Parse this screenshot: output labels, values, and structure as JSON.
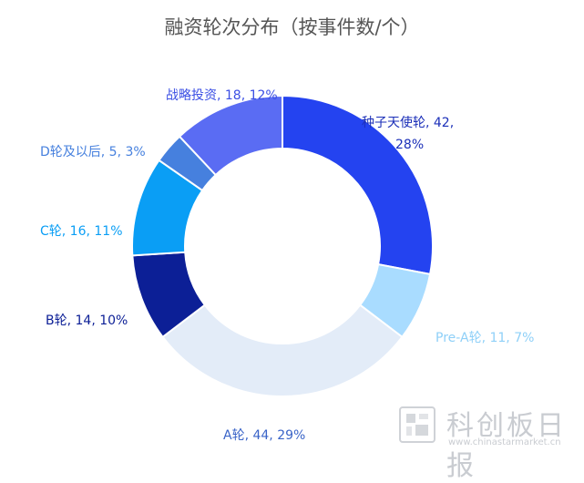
{
  "chart_data": {
    "type": "pie",
    "title": "融资轮次分布（按事件数/个）",
    "categories": [
      "种子天使轮",
      "Pre-A轮",
      "A轮",
      "B轮",
      "C轮",
      "D轮及以后",
      "战略投资"
    ],
    "values": [
      42,
      11,
      44,
      14,
      16,
      5,
      18
    ],
    "percent_labels": [
      "28%",
      "7%",
      "29%",
      "10%",
      "11%",
      "3%",
      "12%"
    ],
    "colors": [
      "#2443f0",
      "#a9dcff",
      "#e3ecf8",
      "#0c1f96",
      "#0a9ef5",
      "#4680de",
      "#5a6cf3"
    ],
    "label_colors": [
      "#1b2fb8",
      "#8fd0f8",
      "#3a64c8",
      "#0c1f96",
      "#0a9ef5",
      "#4680de",
      "#3b4fe4"
    ],
    "labels": [
      {
        "lines": [
          "种子天使轮, 42,",
          "28%"
        ]
      },
      {
        "lines": [
          "Pre-A轮, 11, 7%"
        ]
      },
      {
        "lines": [
          "A轮, 44, 29%"
        ]
      },
      {
        "lines": [
          "B轮, 14, 10%"
        ]
      },
      {
        "lines": [
          "C轮, 16, 11%"
        ]
      },
      {
        "lines": [
          "D轮及以后, 5, 3%"
        ]
      },
      {
        "lines": [
          "战略投资, 18, 12%"
        ]
      }
    ],
    "donut": true,
    "start_angle_deg": 0,
    "direction": "clockwise"
  },
  "watermark": {
    "name": "科创板日报",
    "url": "www.chinastarmarket.cn"
  }
}
